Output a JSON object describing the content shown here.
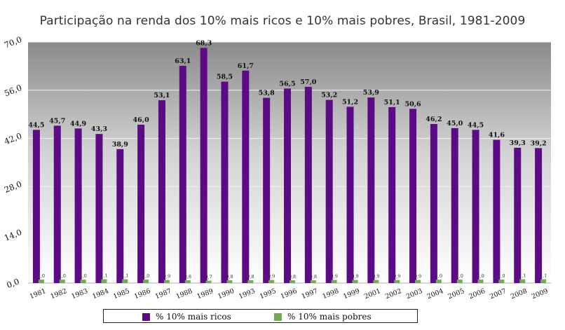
{
  "chart_data": {
    "type": "bar",
    "title": "Participação na renda dos 10% mais ricos e 10% mais pobres, Brasil, 1981-2009",
    "xlabel": "",
    "ylabel": "",
    "ylim": [
      0,
      70
    ],
    "yticks": [
      "0,0",
      "14,0",
      "28,0",
      "42,0",
      "56,0",
      "70,0"
    ],
    "ytick_values": [
      0,
      14,
      28,
      42,
      56,
      70
    ],
    "grid": true,
    "legend_position": "bottom",
    "categories": [
      "1981",
      "1982",
      "1983",
      "1984",
      "1985",
      "1986",
      "1987",
      "1988",
      "1989",
      "1990",
      "1993",
      "1995",
      "1996",
      "1997",
      "1998",
      "1999",
      "2001",
      "2002",
      "2003",
      "2004",
      "2005",
      "2006",
      "2007",
      "2008",
      "2009"
    ],
    "series": [
      {
        "name": "% 10% mais ricos",
        "color": "#5c0a86",
        "values": [
          44.5,
          45.7,
          44.9,
          43.3,
          38.9,
          46.0,
          53.1,
          63.1,
          68.3,
          58.5,
          61.7,
          53.8,
          56.5,
          57.0,
          53.2,
          51.2,
          53.9,
          51.1,
          50.6,
          46.2,
          45.0,
          44.5,
          41.6,
          39.3,
          39.2
        ],
        "labels": [
          "44,5",
          "45,7",
          "44,9",
          "43,3",
          "38,9",
          "46,0",
          "53,1",
          "63,1",
          "68,3",
          "58,5",
          "61,7",
          "53,8",
          "56,5",
          "57,0",
          "53,2",
          "51,2",
          "53,9",
          "51,1",
          "50,6",
          "46,2",
          "45,0",
          "44,5",
          "41,6",
          "39,3",
          "39,2"
        ]
      },
      {
        "name": "% 10% mais pobres",
        "color": "#6fae4f",
        "values": [
          1.0,
          1.0,
          1.0,
          1.1,
          1.1,
          1.0,
          0.9,
          0.8,
          0.7,
          0.8,
          0.8,
          0.9,
          0.8,
          0.8,
          0.9,
          0.9,
          0.9,
          0.9,
          0.9,
          1.0,
          1.0,
          1.0,
          1.0,
          1.1,
          1.1
        ],
        "labels": [
          "1,0",
          "1,0",
          "1,0",
          "1,1",
          "1,1",
          "1,0",
          "0,9",
          "0,8",
          "0,7",
          "0,8",
          "0,8",
          "0,9",
          "0,8",
          "0,8",
          "0,9",
          "0,9",
          "0,9",
          "0,9",
          "0,9",
          "1,0",
          "1,0",
          "1,0",
          "1,0",
          "1,1",
          "1,1"
        ]
      }
    ]
  }
}
